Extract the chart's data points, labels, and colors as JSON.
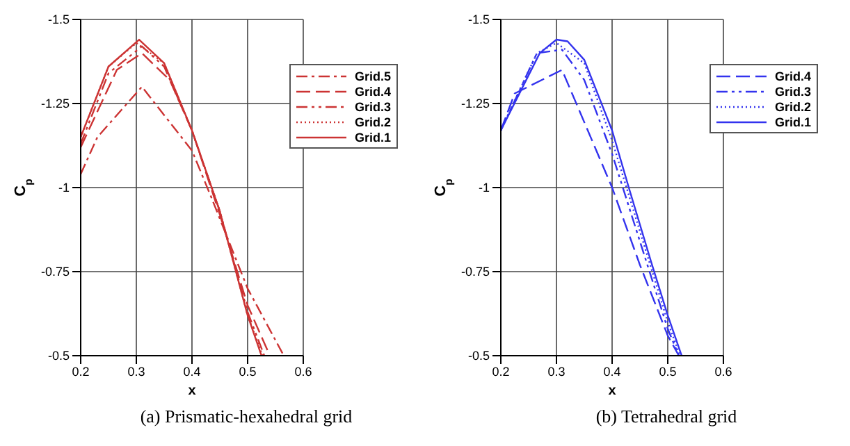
{
  "chart_data": [
    {
      "type": "line",
      "title": "(a) Prismatic-hexahedral grid",
      "xlabel": "x",
      "ylabel": "C$_{p}$",
      "xlim": [
        0.2,
        0.6
      ],
      "xticks": [
        0.2,
        0.3,
        0.4,
        0.5,
        0.6
      ],
      "ylim": [
        -0.5,
        -1.5
      ],
      "yticks": [
        -1.5,
        -1.25,
        -1,
        -0.75,
        -0.5
      ],
      "grid": true,
      "legend": "top right",
      "marker": "none",
      "series": [
        {
          "name": "Grid.5",
          "color": "#cc3333",
          "line_style": "dashdot",
          "x": [
            0.2,
            0.23,
            0.31,
            0.4,
            0.435,
            0.5,
            0.565
          ],
          "values": [
            -1.04,
            -1.15,
            -1.3,
            -1.11,
            -0.97,
            -0.7,
            -0.5
          ]
        },
        {
          "name": "Grid.4",
          "color": "#cc3333",
          "line_style": "dashed",
          "x": [
            0.2,
            0.265,
            0.31,
            0.36,
            0.4,
            0.45,
            0.5,
            0.54
          ],
          "values": [
            -1.12,
            -1.35,
            -1.4,
            -1.32,
            -1.17,
            -0.92,
            -0.65,
            -0.5
          ]
        },
        {
          "name": "Grid.3",
          "color": "#cc3333",
          "line_style": "dashdotdot",
          "x": [
            0.2,
            0.25,
            0.31,
            0.35,
            0.4,
            0.45,
            0.5,
            0.53
          ],
          "values": [
            -1.13,
            -1.34,
            -1.42,
            -1.36,
            -1.17,
            -0.93,
            -0.63,
            -0.5
          ]
        },
        {
          "name": "Grid.2",
          "color": "#cc3333",
          "line_style": "dotted",
          "x": [
            0.2,
            0.25,
            0.3,
            0.35,
            0.4,
            0.45,
            0.5,
            0.527
          ],
          "values": [
            -1.15,
            -1.36,
            -1.43,
            -1.37,
            -1.17,
            -0.93,
            -0.62,
            -0.5
          ]
        },
        {
          "name": "Grid.1",
          "color": "#cc3333",
          "line_style": "solid",
          "x": [
            0.2,
            0.25,
            0.305,
            0.35,
            0.4,
            0.45,
            0.5,
            0.525
          ],
          "values": [
            -1.15,
            -1.36,
            -1.44,
            -1.37,
            -1.17,
            -0.93,
            -0.62,
            -0.5
          ]
        }
      ]
    },
    {
      "type": "line",
      "title": "(b) Tetrahedral grid",
      "xlabel": "x",
      "ylabel": "C$_{p}$",
      "xlim": [
        0.2,
        0.6
      ],
      "xticks": [
        0.2,
        0.3,
        0.4,
        0.5,
        0.6
      ],
      "ylim": [
        -0.5,
        -1.5
      ],
      "yticks": [
        -1.5,
        -1.25,
        -1,
        -0.75,
        -0.5
      ],
      "grid": true,
      "legend": "top right",
      "marker": "none",
      "series": [
        {
          "name": "Grid.4",
          "color": "#3333ee",
          "line_style": "dashed",
          "x": [
            0.2,
            0.225,
            0.31,
            0.4,
            0.45,
            0.5,
            0.52
          ],
          "values": [
            -1.17,
            -1.28,
            -1.35,
            -1.0,
            -0.77,
            -0.56,
            -0.5
          ]
        },
        {
          "name": "Grid.3",
          "color": "#3333ee",
          "line_style": "dashdotdot",
          "x": [
            0.2,
            0.265,
            0.31,
            0.35,
            0.4,
            0.45,
            0.5,
            0.52
          ],
          "values": [
            -1.17,
            -1.4,
            -1.41,
            -1.32,
            -1.1,
            -0.84,
            -0.58,
            -0.5
          ]
        },
        {
          "name": "Grid.2",
          "color": "#3333ee",
          "line_style": "dotted",
          "x": [
            0.2,
            0.265,
            0.3,
            0.35,
            0.4,
            0.45,
            0.5,
            0.522
          ],
          "values": [
            -1.17,
            -1.4,
            -1.43,
            -1.37,
            -1.14,
            -0.87,
            -0.6,
            -0.5
          ]
        },
        {
          "name": "Grid.1",
          "color": "#3333ee",
          "line_style": "solid",
          "x": [
            0.2,
            0.27,
            0.3,
            0.32,
            0.35,
            0.4,
            0.43,
            0.47,
            0.5,
            0.525
          ],
          "values": [
            -1.17,
            -1.4,
            -1.44,
            -1.435,
            -1.38,
            -1.17,
            -1.0,
            -0.78,
            -0.62,
            -0.5
          ]
        }
      ]
    }
  ]
}
